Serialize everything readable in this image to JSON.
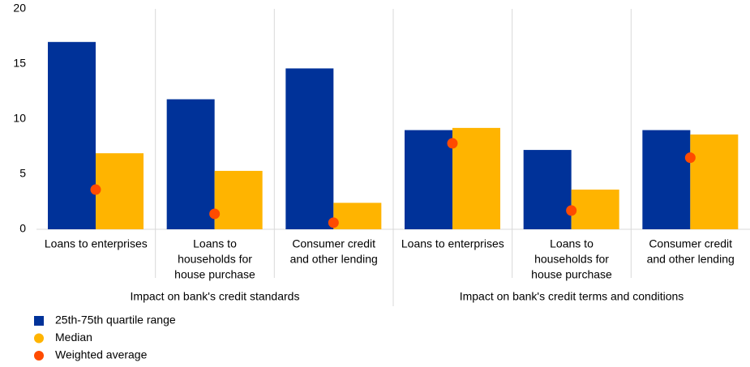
{
  "chart_data": {
    "type": "bar",
    "categories": [
      [
        "Loans to enterprises"
      ],
      [
        "Loans to",
        "households for",
        "house purchase"
      ],
      [
        "Consumer credit",
        "and other lending"
      ],
      [
        "Loans to enterprises"
      ],
      [
        "Loans to",
        "households for",
        "house purchase"
      ],
      [
        "Consumer credit",
        "and other lending"
      ]
    ],
    "groups": [
      "Impact on bank's credit standards",
      "Impact on bank's credit terms and conditions"
    ],
    "series": [
      {
        "name": "25th-75th quartile range",
        "color": "#003299",
        "values": [
          17.0,
          11.8,
          14.6,
          9.0,
          7.2,
          9.0
        ]
      },
      {
        "name": "Median",
        "color": "#ffb400",
        "values": [
          6.9,
          5.3,
          2.4,
          9.2,
          3.6,
          8.6
        ]
      },
      {
        "name": "Weighted average",
        "color": "#ff4b00",
        "type": "scatter",
        "values": [
          3.6,
          1.4,
          0.6,
          7.8,
          1.7,
          6.5
        ]
      }
    ],
    "ylim": [
      0,
      20
    ],
    "yticks": [
      0,
      5,
      10,
      15,
      20
    ]
  }
}
